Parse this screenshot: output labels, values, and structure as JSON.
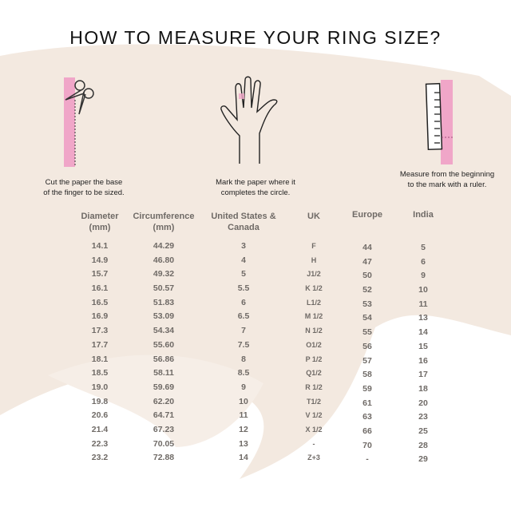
{
  "title": "HOW TO MEASURE YOUR RING SIZE?",
  "colors": {
    "pink": "#f0a6c8",
    "beige": "#f3e9e0",
    "text": "#6f6a66"
  },
  "steps": [
    {
      "icon": "scissors-paper-icon",
      "caption_line1": "Cut the paper the base",
      "caption_line2": "of the finger to be sized."
    },
    {
      "icon": "hand-icon",
      "caption_line1": "Mark the paper where it",
      "caption_line2": "completes the circle."
    },
    {
      "icon": "ruler-icon",
      "caption_line1": "Measure from the beginning",
      "caption_line2": "to the mark with a ruler."
    }
  ],
  "table": {
    "columns": [
      {
        "header": [
          "Diameter",
          "(mm)"
        ],
        "values": [
          "14.1",
          "14.9",
          "15.7",
          "16.1",
          "16.5",
          "16.9",
          "17.3",
          "17.7",
          "18.1",
          "18.5",
          "19.0",
          "19.8",
          "20.6",
          "21.4",
          "22.3",
          "23.2"
        ]
      },
      {
        "header": [
          "Circumference",
          "(mm)"
        ],
        "values": [
          "44.29",
          "46.80",
          "49.32",
          "50.57",
          "51.83",
          "53.09",
          "54.34",
          "55.60",
          "56.86",
          "58.11",
          "59.69",
          "62.20",
          "64.71",
          "67.23",
          "70.05",
          "72.88"
        ]
      },
      {
        "header": [
          "United States &",
          "Canada"
        ],
        "values": [
          "3",
          "4",
          "5",
          "5.5",
          "6",
          "6.5",
          "7",
          "7.5",
          "8",
          "8.5",
          "9",
          "10",
          "11",
          "12",
          "13",
          "14"
        ]
      },
      {
        "header": [
          "UK"
        ],
        "values": [
          "F",
          "H",
          "J1/2",
          "K 1/2",
          "L1/2",
          "M 1/2",
          "N 1/2",
          "O1/2",
          "P 1/2",
          "Q1/2",
          "R 1/2",
          "T1/2",
          "V 1/2",
          "X 1/2",
          "-",
          "Z+3"
        ]
      },
      {
        "header": [
          "Europe"
        ],
        "values": [
          "44",
          "47",
          "50",
          "52",
          "53",
          "54",
          "55",
          "56",
          "57",
          "58",
          "59",
          "61",
          "63",
          "66",
          "70",
          "-"
        ]
      },
      {
        "header": [
          "India"
        ],
        "values": [
          "5",
          "6",
          "9",
          "10",
          "11",
          "13",
          "14",
          "15",
          "16",
          "17",
          "18",
          "20",
          "23",
          "25",
          "28",
          "29"
        ]
      }
    ]
  }
}
